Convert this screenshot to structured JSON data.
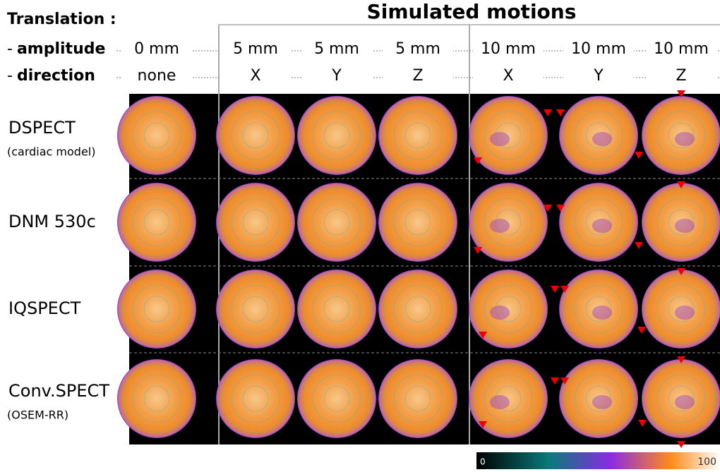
{
  "header": {
    "title": "Translation :",
    "subtitle": "Simulated motions"
  },
  "parameters": [
    {
      "dash": "-",
      "word": "amplitude",
      "values": [
        "0 mm",
        "5 mm",
        "5 mm",
        "5 mm",
        "10 mm",
        "10 mm",
        "10 mm"
      ]
    },
    {
      "dash": "-",
      "word": "direction",
      "values": [
        "none",
        "X",
        "Y",
        "Z",
        "X",
        "Y",
        "Z"
      ]
    }
  ],
  "systems": [
    {
      "name": "DSPECT",
      "note": "(cardiac model)"
    },
    {
      "name": "DNM 530c"
    },
    {
      "name": "IQSPECT"
    },
    {
      "name": "Conv.SPECT",
      "note": "(OSEM-RR)"
    }
  ],
  "colorbar": {
    "min": "0",
    "max": "100"
  }
}
